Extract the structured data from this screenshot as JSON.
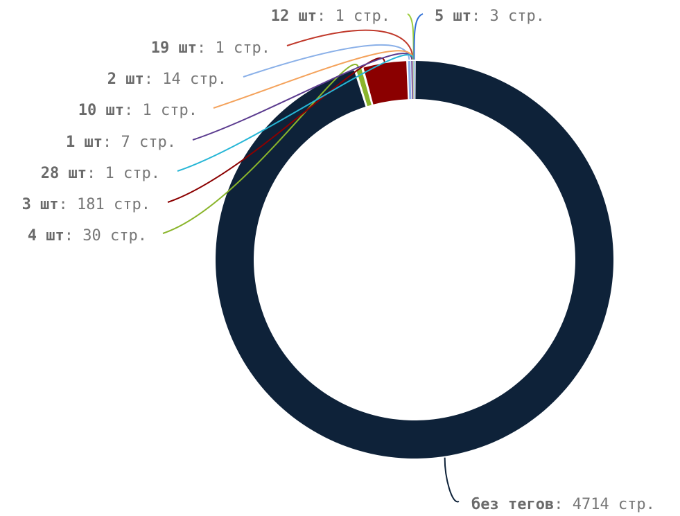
{
  "chart_data": {
    "type": "pie",
    "variant": "donut",
    "slices": [
      {
        "name": "без тегов",
        "value": 4714,
        "key": "без тегов",
        "rest": ": 4714 стр.",
        "color": "#0e2239"
      },
      {
        "name": "3 шт",
        "value": 181,
        "key": "3 шт",
        "rest": ": 181 стр.",
        "color": "#8b0000"
      },
      {
        "name": "4 шт",
        "value": 30,
        "key": "4 шт",
        "rest": ": 30 стр.",
        "color": "#8ab52b"
      },
      {
        "name": "2 шт",
        "value": 14,
        "key": "2 шт",
        "rest": ": 14 стр.",
        "color": "#8ab0e8"
      },
      {
        "name": "1 шт",
        "value": 7,
        "key": "1 шт",
        "rest": ": 7 стр.",
        "color": "#5b3b8f"
      },
      {
        "name": "5 шт",
        "value": 3,
        "key": "5 шт",
        "rest": ": 3 стр.",
        "color": "#2f6fd6"
      },
      {
        "name": "12 шт",
        "value": 1,
        "key": "12 шт",
        "rest": ": 1 стр.",
        "color": "#9ccc3c"
      },
      {
        "name": "19 шт",
        "value": 1,
        "key": "19 шт",
        "rest": ": 1 стр.",
        "color": "#c0392b"
      },
      {
        "name": "10 шт",
        "value": 1,
        "key": "10 шт",
        "rest": ": 1 стр.",
        "color": "#f4a25b"
      },
      {
        "name": "28 шт",
        "value": 1,
        "key": "28 шт",
        "rest": ": 1 стр.",
        "color": "#26b6d6"
      }
    ]
  }
}
